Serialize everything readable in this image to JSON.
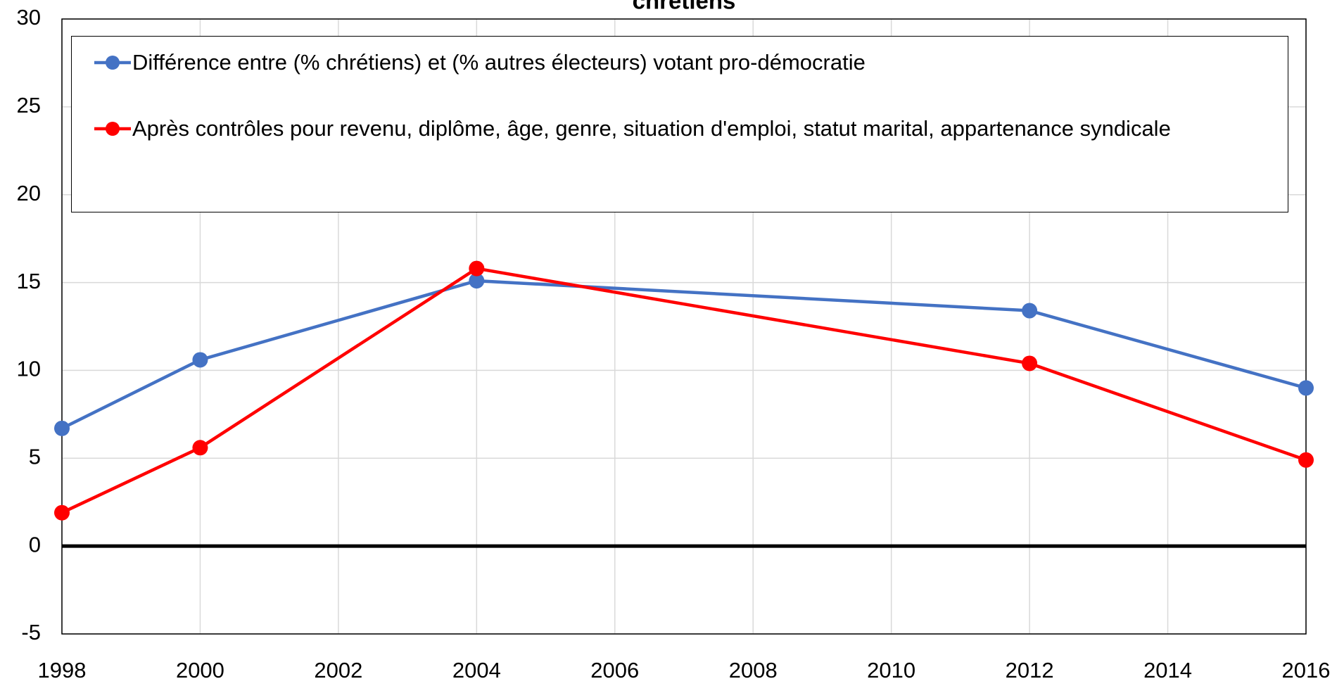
{
  "chart_data": {
    "type": "line",
    "title": "chrétiens",
    "x": [
      1998,
      2000,
      2004,
      2012,
      2016
    ],
    "series": [
      {
        "name": "Différence entre (% chrétiens) et (% autres électeurs) votant pro-démocratie",
        "color": "#4472c4",
        "values": [
          6.7,
          10.6,
          15.1,
          13.4,
          9.0
        ]
      },
      {
        "name": "Après contrôles pour revenu, diplôme, âge, genre, situation d'emploi, statut marital, appartenance syndicale",
        "color": "#ff0000",
        "values": [
          1.9,
          5.6,
          15.8,
          10.4,
          4.9
        ]
      }
    ],
    "xlim": [
      1998,
      2016
    ],
    "xticks": [
      1998,
      2000,
      2002,
      2004,
      2006,
      2008,
      2010,
      2012,
      2014,
      2016
    ],
    "ylim": [
      -5,
      30
    ],
    "yticks": [
      -5,
      0,
      5,
      10,
      15,
      20,
      25,
      30
    ],
    "grid": true,
    "legend": "top"
  }
}
